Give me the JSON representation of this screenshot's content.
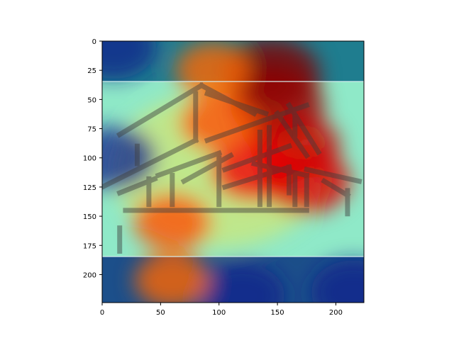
{
  "chart_data": {
    "type": "heatmap",
    "title": "",
    "xlabel": "",
    "ylabel": "",
    "xlim": [
      0,
      224
    ],
    "ylim": [
      224,
      0
    ],
    "x_ticks": [
      0,
      50,
      100,
      150,
      200
    ],
    "y_ticks": [
      0,
      25,
      50,
      75,
      100,
      125,
      150,
      175,
      200
    ],
    "x_tick_labels": [
      "0",
      "50",
      "100",
      "150",
      "200"
    ],
    "y_tick_labels": [
      "0",
      "25",
      "50",
      "75",
      "100",
      "125",
      "150",
      "175",
      "200"
    ],
    "grid": false,
    "colormap": "jet",
    "underlying_image": "house-outline-logo",
    "hotspots": [
      {
        "x": 145,
        "y": 28,
        "intensity": 1.0
      },
      {
        "x": 150,
        "y": 55,
        "intensity": 0.95
      },
      {
        "x": 165,
        "y": 90,
        "intensity": 0.85
      },
      {
        "x": 130,
        "y": 110,
        "intensity": 0.75
      },
      {
        "x": 175,
        "y": 120,
        "intensity": 0.8
      },
      {
        "x": 100,
        "y": 70,
        "intensity": 0.55
      },
      {
        "x": 60,
        "y": 155,
        "intensity": 0.55
      },
      {
        "x": 60,
        "y": 205,
        "intensity": 0.5
      },
      {
        "x": 95,
        "y": 25,
        "intensity": 0.5
      }
    ],
    "coldspots": [
      {
        "x": 10,
        "y": 5
      },
      {
        "x": 215,
        "y": 215
      },
      {
        "x": 10,
        "y": 100
      },
      {
        "x": 120,
        "y": 218
      }
    ]
  }
}
